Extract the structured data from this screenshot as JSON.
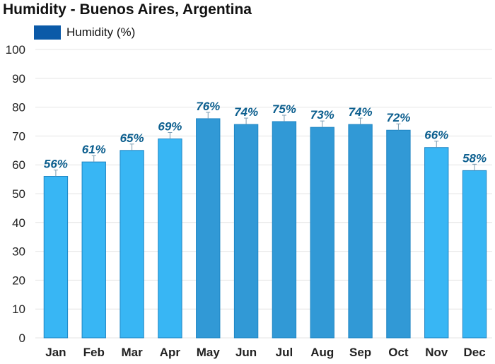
{
  "chart_data": {
    "type": "bar",
    "title": "Humidity - Buenos Aires, Argentina",
    "legend": [
      {
        "name": "Humidity (%)",
        "color": "#0b5aa8"
      }
    ],
    "categories": [
      "Jan",
      "Feb",
      "Mar",
      "Apr",
      "May",
      "Jun",
      "Jul",
      "Aug",
      "Sep",
      "Oct",
      "Nov",
      "Dec"
    ],
    "series": [
      {
        "name": "Humidity (%)",
        "values": [
          56,
          61,
          65,
          69,
          76,
          74,
          75,
          73,
          74,
          72,
          66,
          58
        ]
      }
    ],
    "data_labels": [
      "56%",
      "61%",
      "65%",
      "69%",
      "76%",
      "74%",
      "75%",
      "73%",
      "74%",
      "72%",
      "66%",
      "58%"
    ],
    "ylim": [
      0,
      100
    ],
    "yticks": [
      0,
      10,
      20,
      30,
      40,
      50,
      60,
      70,
      80,
      90,
      100
    ],
    "grid": true,
    "legend_position": "top-left",
    "colors": {
      "bar_light": "#38b6f4",
      "bar_dark": "#3199d6",
      "bar_edge": "#1f86c4",
      "label": "#0b5e8e",
      "grid": "#e4e4e4"
    }
  }
}
